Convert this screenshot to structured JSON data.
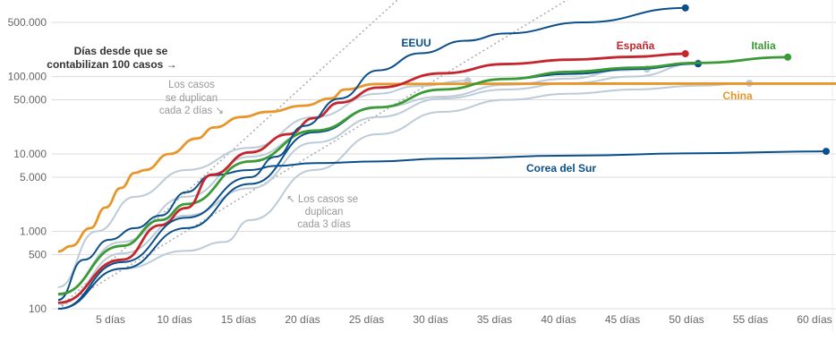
{
  "chart_data": {
    "type": "line",
    "title": "",
    "xlabel": "Días desde que se contabilizan 100 casos →",
    "ylabel": "",
    "yscale": "log",
    "ylim": [
      100,
      1000000
    ],
    "xlim": [
      0,
      61
    ],
    "y_ticks": [
      {
        "value": 100,
        "label": "100"
      },
      {
        "value": 500,
        "label": "500"
      },
      {
        "value": 1000,
        "label": "1.000"
      },
      {
        "value": 5000,
        "label": "5.000"
      },
      {
        "value": 10000,
        "label": "10.000"
      },
      {
        "value": 50000,
        "label": "50.000"
      },
      {
        "value": 100000,
        "label": "100.000"
      },
      {
        "value": 500000,
        "label": "500.000"
      }
    ],
    "x_ticks": [
      {
        "value": 5,
        "label": "5 días"
      },
      {
        "value": 10,
        "label": "10 días"
      },
      {
        "value": 15,
        "label": "15 días"
      },
      {
        "value": 20,
        "label": "20 días"
      },
      {
        "value": 25,
        "label": "25 días"
      },
      {
        "value": 30,
        "label": "30 días"
      },
      {
        "value": 35,
        "label": "35 días"
      },
      {
        "value": 40,
        "label": "40 días"
      },
      {
        "value": 45,
        "label": "45 días"
      },
      {
        "value": 50,
        "label": "50 días"
      },
      {
        "value": 55,
        "label": "55 días"
      },
      {
        "value": 60,
        "label": "60 días"
      }
    ],
    "reference_lines": [
      {
        "name": "doubling-2-days",
        "doubling_days": 2,
        "start": 100,
        "label": "Los casos se duplican cada 2 días ↘"
      },
      {
        "name": "doubling-3-days",
        "doubling_days": 3,
        "start": 100,
        "label": "↖ Los casos se duplican cada 3 días"
      }
    ],
    "series": [
      {
        "name": "",
        "highlight": false,
        "color": "#bccbd8",
        "end_dot": true,
        "points": [
          [
            0,
            190
          ],
          [
            3,
            1000
          ],
          [
            6,
            2800
          ],
          [
            10,
            6200
          ],
          [
            15,
            12000
          ],
          [
            20,
            30000
          ],
          [
            25,
            60000
          ],
          [
            28,
            75000
          ],
          [
            32,
            88000
          ]
        ]
      },
      {
        "name": "",
        "highlight": false,
        "color": "#bccbd8",
        "end_dot": true,
        "points": [
          [
            0,
            150
          ],
          [
            5,
            730
          ],
          [
            10,
            2800
          ],
          [
            15,
            9200
          ],
          [
            20,
            20000
          ],
          [
            25,
            40000
          ],
          [
            30,
            55000
          ],
          [
            35,
            78000
          ],
          [
            40,
            94000
          ],
          [
            44,
            120000
          ],
          [
            46,
            125000
          ]
        ]
      },
      {
        "name": "",
        "highlight": false,
        "color": "#bccbd8",
        "end_dot": true,
        "points": [
          [
            0,
            100
          ],
          [
            5,
            330
          ],
          [
            10,
            560
          ],
          [
            13,
            730
          ],
          [
            15,
            1400
          ],
          [
            20,
            6200
          ],
          [
            25,
            18000
          ],
          [
            30,
            35000
          ],
          [
            35,
            50000
          ],
          [
            40,
            60000
          ],
          [
            45,
            68000
          ],
          [
            50,
            76000
          ],
          [
            54,
            82000
          ]
        ]
      },
      {
        "name": "",
        "highlight": false,
        "color": "#bccbd8",
        "end_dot": true,
        "points": [
          [
            0,
            115
          ],
          [
            5,
            520
          ],
          [
            10,
            1600
          ],
          [
            15,
            3600
          ],
          [
            20,
            14000
          ],
          [
            25,
            30000
          ],
          [
            30,
            52000
          ],
          [
            35,
            68000
          ],
          [
            40,
            82000
          ],
          [
            45,
            100000
          ],
          [
            50,
            150000
          ]
        ]
      },
      {
        "name": "China",
        "highlight": true,
        "color": "#e8962a",
        "end_dot": false,
        "points": [
          [
            0,
            550
          ],
          [
            1,
            645
          ],
          [
            2.5,
            1100
          ],
          [
            3.7,
            2030
          ],
          [
            4.9,
            3630
          ],
          [
            6,
            5700
          ],
          [
            6.8,
            6200
          ],
          [
            8.7,
            10000
          ],
          [
            10.8,
            15800
          ],
          [
            12.2,
            22000
          ],
          [
            14.3,
            30000
          ],
          [
            16.4,
            35000
          ],
          [
            19.2,
            42000
          ],
          [
            21.3,
            52000
          ],
          [
            22.4,
            68000
          ],
          [
            24.8,
            80000
          ],
          [
            40,
            81000
          ],
          [
            61,
            81000
          ]
        ]
      },
      {
        "name": "Corea del Sur",
        "highlight": true,
        "color": "#0b4f8a",
        "end_dot": true,
        "points": [
          [
            0,
            130
          ],
          [
            2,
            430
          ],
          [
            4,
            780
          ],
          [
            6,
            1100
          ],
          [
            8,
            1600
          ],
          [
            10,
            3200
          ],
          [
            12,
            5300
          ],
          [
            15,
            6200
          ],
          [
            17,
            7000
          ],
          [
            20,
            7600
          ],
          [
            25,
            8000
          ],
          [
            30,
            8700
          ],
          [
            40,
            9500
          ],
          [
            50,
            10200
          ],
          [
            60,
            10800
          ]
        ]
      },
      {
        "name": "",
        "highlight": true,
        "color": "#0b4f8a",
        "end_dot": true,
        "points": [
          [
            0,
            100
          ],
          [
            5,
            330
          ],
          [
            10,
            1100
          ],
          [
            15,
            4100
          ],
          [
            20,
            19000
          ],
          [
            25,
            40000
          ],
          [
            30,
            68000
          ],
          [
            35,
            93000
          ],
          [
            40,
            108000
          ],
          [
            45,
            125000
          ],
          [
            50,
            146000
          ]
        ]
      },
      {
        "name": "Italia",
        "highlight": true,
        "color": "#3a9a36",
        "end_dot": true,
        "points": [
          [
            0,
            155
          ],
          [
            5,
            650
          ],
          [
            8,
            1400
          ],
          [
            10,
            2250
          ],
          [
            15,
            8000
          ],
          [
            20,
            20000
          ],
          [
            25,
            40000
          ],
          [
            30,
            68000
          ],
          [
            35,
            93000
          ],
          [
            40,
            115000
          ],
          [
            45,
            130000
          ],
          [
            50,
            150000
          ],
          [
            57,
            178000
          ]
        ]
      },
      {
        "name": "España",
        "highlight": true,
        "color": "#c4262e",
        "end_dot": true,
        "points": [
          [
            0,
            120
          ],
          [
            5,
            430
          ],
          [
            8,
            1200
          ],
          [
            10,
            2000
          ],
          [
            12,
            5400
          ],
          [
            15,
            10500
          ],
          [
            18,
            18000
          ],
          [
            20,
            29000
          ],
          [
            22,
            46000
          ],
          [
            25,
            72000
          ],
          [
            30,
            110000
          ],
          [
            35,
            145000
          ],
          [
            40,
            165000
          ],
          [
            45,
            180000
          ],
          [
            49,
            197000
          ]
        ]
      },
      {
        "name": "EEUU",
        "highlight": true,
        "color": "#0b4f8a",
        "end_dot": true,
        "points": [
          [
            0,
            100
          ],
          [
            5,
            400
          ],
          [
            10,
            1500
          ],
          [
            15,
            5000
          ],
          [
            17,
            9200
          ],
          [
            19.2,
            23000
          ],
          [
            22,
            52000
          ],
          [
            25,
            120000
          ],
          [
            28.3,
            200000
          ],
          [
            31.8,
            290000
          ],
          [
            35,
            360000
          ],
          [
            41,
            500000
          ],
          [
            49,
            770000
          ]
        ]
      }
    ]
  },
  "annotations": {
    "header_line1": "Días desde que se",
    "header_line2": "contabilizan 100 casos →",
    "double2_l1": "Los casos",
    "double2_l2": "se duplican",
    "double2_l3": "cada 2 días ↘",
    "double3_l1": "↖ Los casos se",
    "double3_l2": "duplican",
    "double3_l3": "cada 3 días"
  },
  "labels": {
    "eeuu": "EEUU",
    "espana": "España",
    "italia": "Italia",
    "china": "China",
    "corea": "Corea del Sur"
  }
}
